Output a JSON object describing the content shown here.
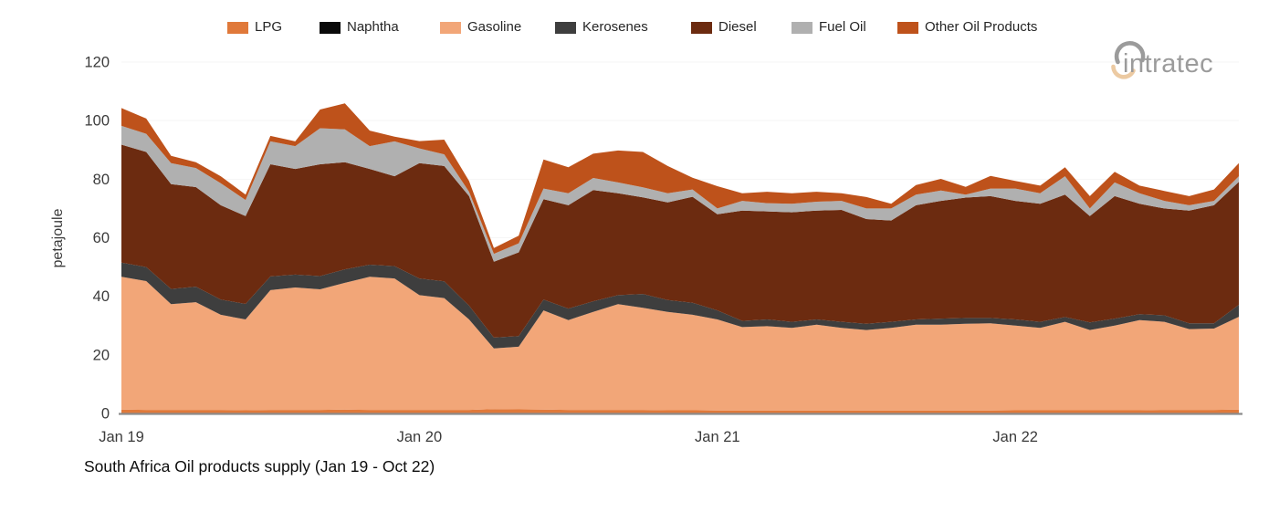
{
  "title": "South Africa Oil products supply (Jan 19 - Oct 22)",
  "logo": {
    "text": "intratec",
    "color": "#9b9b9b",
    "arc_top_color": "#9b9b9b",
    "arc_bottom_color": "#eccaa2"
  },
  "axis": {
    "y_unit_label": "petajoule",
    "text_color": "#3b3b3b",
    "axis_line_color": "#8c8c8c",
    "gridline_color": "#f5f5f5"
  },
  "chart_data": {
    "type": "area",
    "stacked": true,
    "title": "South Africa Oil products supply (Jan 19 - Oct 22)",
    "xlabel": "",
    "ylabel": "petajoule",
    "ylim": [
      0,
      120
    ],
    "yticks": [
      0,
      20,
      40,
      60,
      80,
      100,
      120
    ],
    "grid": "faint-horizontal",
    "legend_position": "top",
    "x_tick_labels": [
      "Jan 19",
      "Jan 20",
      "Jan 21",
      "Jan 22"
    ],
    "x_tick_month_index": [
      0,
      12,
      24,
      36
    ],
    "categories": [
      "Jan 19",
      "Feb 19",
      "Mar 19",
      "Apr 19",
      "May 19",
      "Jun 19",
      "Jul 19",
      "Aug 19",
      "Sep 19",
      "Oct 19",
      "Nov 19",
      "Dec 19",
      "Jan 20",
      "Feb 20",
      "Mar 20",
      "Apr 20",
      "May 20",
      "Jun 20",
      "Jul 20",
      "Aug 20",
      "Sep 20",
      "Oct 20",
      "Nov 20",
      "Dec 20",
      "Jan 21",
      "Feb 21",
      "Mar 21",
      "Apr 21",
      "May 21",
      "Jun 21",
      "Jul 21",
      "Aug 21",
      "Sep 21",
      "Oct 21",
      "Nov 21",
      "Dec 21",
      "Jan 22",
      "Feb 22",
      "Mar 22",
      "Apr 22",
      "May 22",
      "Jun 22",
      "Jul 22",
      "Aug 22",
      "Sep 22",
      "Oct 22"
    ],
    "series": [
      {
        "name": "LPG",
        "color": "#e0793a",
        "values": [
          1.3,
          1.2,
          1.2,
          1.2,
          1.2,
          1.1,
          1.2,
          1.2,
          1.2,
          1.3,
          1.2,
          1.2,
          1.2,
          1.2,
          1.2,
          1.5,
          1.4,
          1.3,
          1.2,
          1.2,
          1.2,
          1.2,
          1.1,
          1.1,
          1.0,
          1.0,
          1.0,
          1.0,
          1.0,
          1.0,
          1.0,
          1.0,
          1.0,
          1.0,
          1.0,
          1.0,
          1.1,
          1.1,
          1.1,
          1.1,
          1.1,
          1.1,
          1.2,
          1.2,
          1.2,
          1.3
        ]
      },
      {
        "name": "Naphtha",
        "color": "#0a0a0a",
        "values": [
          0,
          0,
          0,
          0,
          0,
          0,
          0,
          0,
          0,
          0,
          0,
          0,
          0,
          0,
          0,
          0,
          0,
          0,
          0,
          0,
          0,
          0,
          0,
          0,
          0,
          0,
          0,
          0,
          0,
          0,
          0,
          0,
          0,
          0,
          0,
          0,
          0,
          0,
          0,
          0,
          0,
          0,
          0,
          0,
          0,
          0
        ]
      },
      {
        "name": "Gasoline",
        "color": "#f2a678",
        "values": [
          45.4,
          44.0,
          36.1,
          36.8,
          32.5,
          31.0,
          40.9,
          41.8,
          41.2,
          43.3,
          45.5,
          44.9,
          39.2,
          38.2,
          30.9,
          20.7,
          21.4,
          33.9,
          30.7,
          33.5,
          36.1,
          34.9,
          33.6,
          32.6,
          31.1,
          28.5,
          28.8,
          28.2,
          29.3,
          28.2,
          27.5,
          28.2,
          29.3,
          29.3,
          29.6,
          29.8,
          28.9,
          28.1,
          30.2,
          27.4,
          28.9,
          30.8,
          30.1,
          27.6,
          27.8,
          31.7
        ]
      },
      {
        "name": "Kerosenes",
        "color": "#3e3e3e",
        "values": [
          4.8,
          4.8,
          5.2,
          5.3,
          5.2,
          5.3,
          4.7,
          4.4,
          4.5,
          4.6,
          4.1,
          4.2,
          5.7,
          5.7,
          4.7,
          3.7,
          3.6,
          3.7,
          3.9,
          3.6,
          3.1,
          4.7,
          4.0,
          4.1,
          3.1,
          2.1,
          2.3,
          2.1,
          1.8,
          2.1,
          2.1,
          2.1,
          1.8,
          2.1,
          2.0,
          1.8,
          2.1,
          2.1,
          1.6,
          2.6,
          2.4,
          2.0,
          2.2,
          2.0,
          1.8,
          4.1
        ]
      },
      {
        "name": "Diesel",
        "color": "#6c2b10",
        "values": [
          40.3,
          39.3,
          35.8,
          34.0,
          32.2,
          30.0,
          38.3,
          36.1,
          38.2,
          36.6,
          32.7,
          30.7,
          39.4,
          39.4,
          37.4,
          25.9,
          28.6,
          34.3,
          35.3,
          38.0,
          34.8,
          33.0,
          33.4,
          36.2,
          32.8,
          37.7,
          36.9,
          37.4,
          37.2,
          38.2,
          35.8,
          34.6,
          39.0,
          40.2,
          41.1,
          41.6,
          40.5,
          40.3,
          41.8,
          36.3,
          41.8,
          37.7,
          36.5,
          38.5,
          40.3,
          42.0
        ]
      },
      {
        "name": "Fuel Oil",
        "color": "#b0b0b0",
        "values": [
          6.4,
          6.2,
          7.2,
          6.5,
          7.5,
          5.5,
          7.8,
          7.8,
          12.3,
          11.2,
          7.8,
          11.9,
          5.0,
          4.0,
          1.5,
          2.7,
          3.1,
          3.6,
          4.1,
          4.1,
          3.7,
          3.4,
          3.1,
          2.5,
          2.0,
          3.3,
          2.8,
          2.9,
          3.0,
          3.1,
          3.6,
          4.1,
          3.6,
          3.5,
          1.0,
          2.6,
          4.2,
          3.6,
          6.3,
          2.6,
          4.7,
          3.6,
          2.6,
          1.8,
          1.5,
          1.9
        ]
      },
      {
        "name": "Other Oil Products",
        "color": "#be521b",
        "values": [
          6.1,
          5.2,
          2.5,
          2.0,
          2.4,
          1.8,
          1.9,
          1.6,
          6.4,
          8.9,
          5.3,
          1.6,
          2.5,
          5.0,
          3.7,
          2.0,
          2.6,
          9.9,
          8.9,
          8.3,
          10.9,
          12.1,
          9.3,
          4.0,
          7.6,
          2.6,
          3.9,
          3.6,
          3.4,
          2.6,
          3.9,
          1.6,
          3.3,
          4.0,
          2.7,
          4.3,
          2.6,
          2.6,
          3.1,
          4.2,
          3.6,
          2.6,
          3.4,
          3.1,
          3.9,
          4.5
        ]
      }
    ]
  }
}
